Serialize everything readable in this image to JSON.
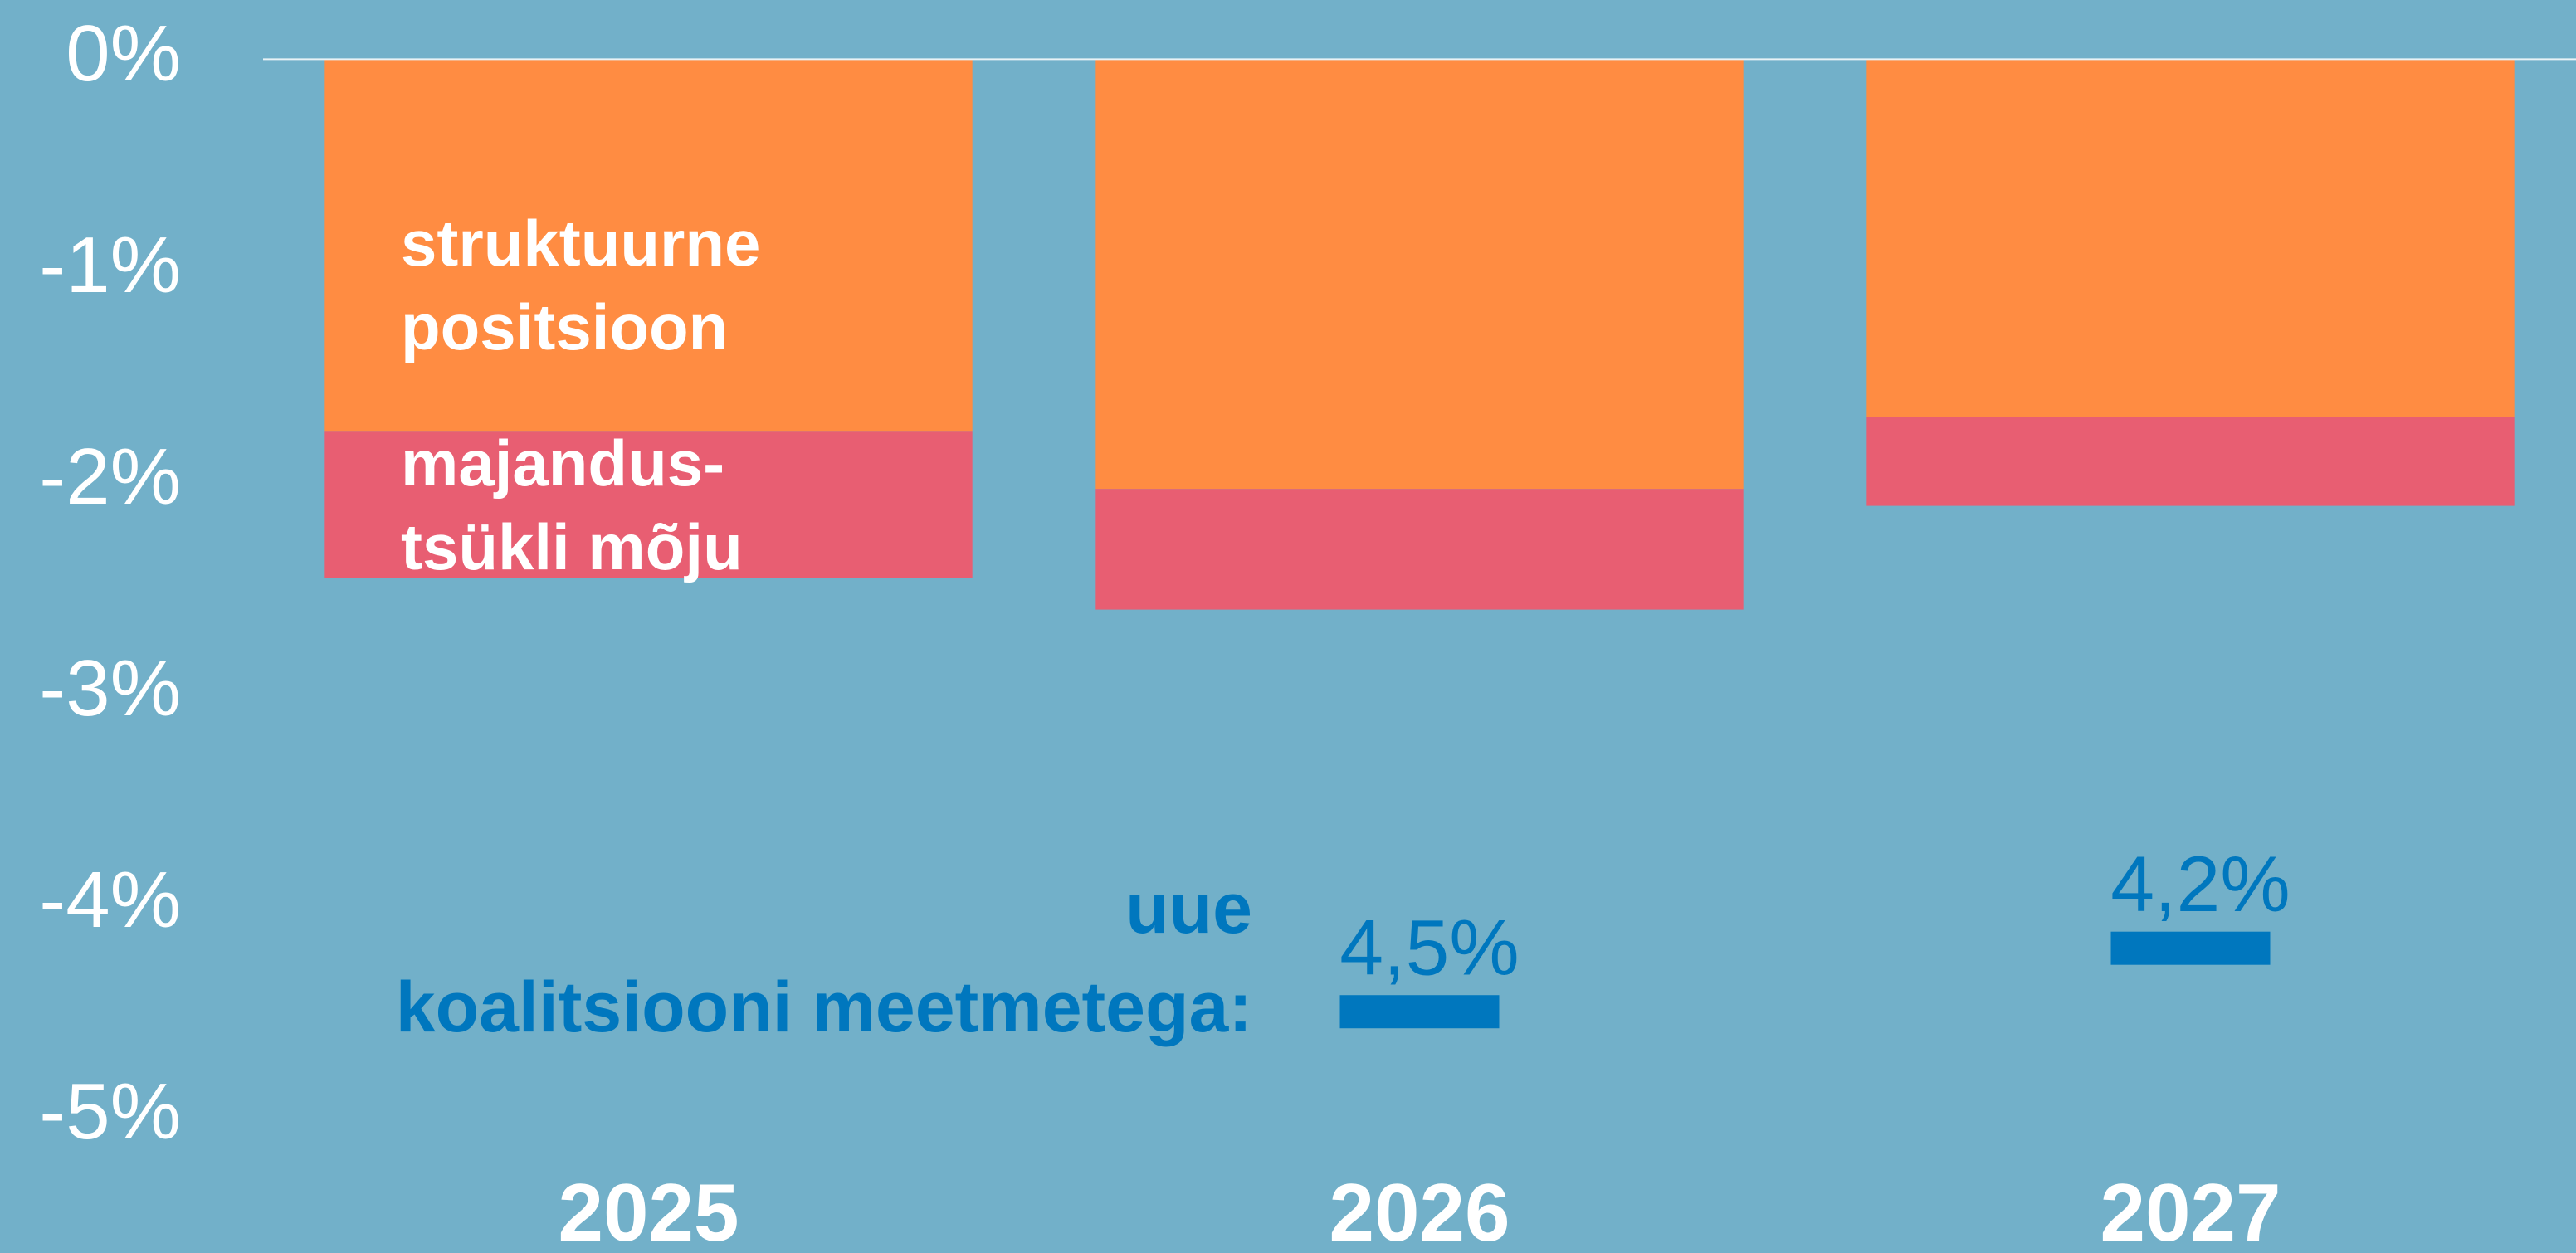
{
  "chart_data": {
    "type": "stacked_bar",
    "categories": [
      "2025",
      "2026",
      "2027"
    ],
    "series": [
      {
        "name": "struktuurne positsioon",
        "color": "#FF8C42",
        "values": [
          -1.76,
          -2.03,
          -1.69
        ]
      },
      {
        "name": "majandus-tsükli mõju",
        "color": "#E85E72",
        "values": [
          -0.69,
          -0.57,
          -0.42
        ]
      }
    ],
    "markers": {
      "name": "uue koalitsiooni meetmetega:",
      "color": "#0077BE",
      "values": [
        null,
        -4.5,
        -4.2
      ],
      "value_labels": [
        null,
        "4,5%",
        "4,2%"
      ]
    },
    "ylim": [
      -5.64,
      0.28
    ],
    "yticks": [
      {
        "value": 0,
        "label": "0%"
      },
      {
        "value": -1,
        "label": "-1%"
      },
      {
        "value": -2,
        "label": "-2%"
      },
      {
        "value": -3,
        "label": "-3%"
      },
      {
        "value": -4,
        "label": "-4%"
      },
      {
        "value": -5,
        "label": "-5%"
      }
    ],
    "zero_line": true
  }
}
